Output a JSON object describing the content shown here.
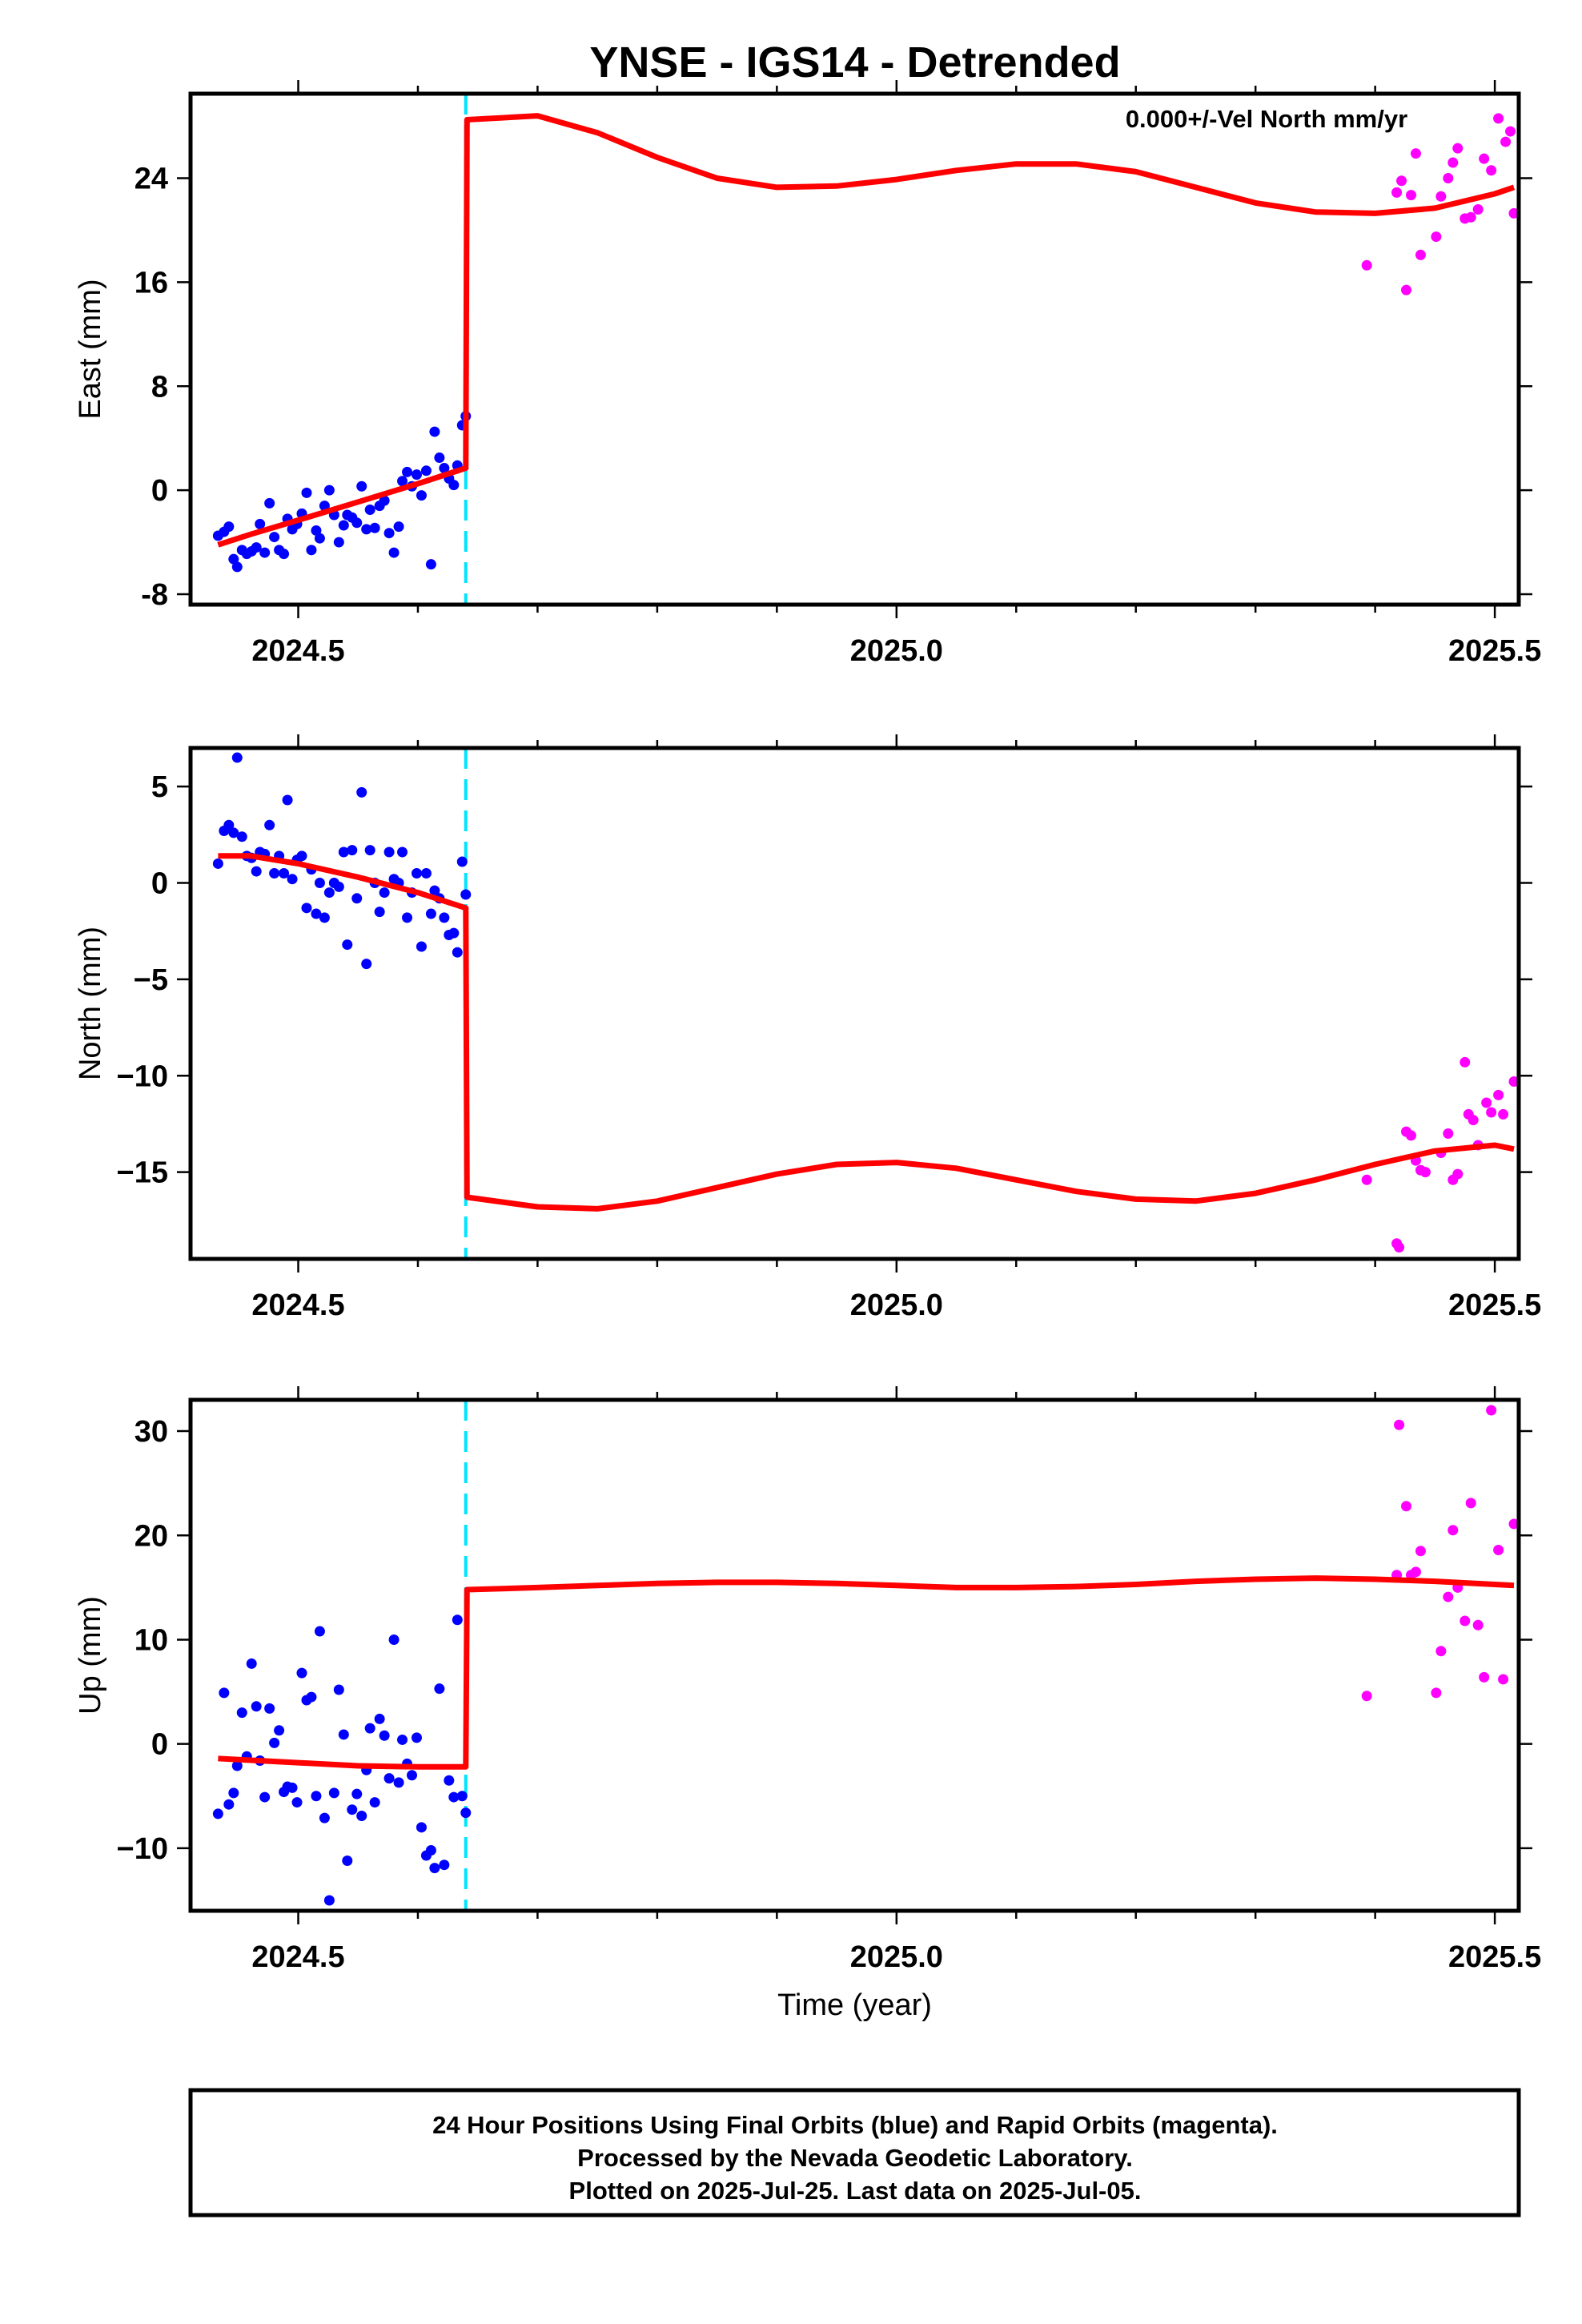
{
  "title": "YNSE - IGS14 - Detrended",
  "footer": {
    "line1": "24 Hour Positions Using Final Orbits (blue) and Rapid Orbits (magenta).",
    "line2": "Processed by the Nevada Geodetic Laboratory.",
    "line3": "Plotted on 2025-Jul-25. Last data on 2025-Jul-05."
  },
  "colors": {
    "final": "#0000ff",
    "rapid": "#ff00ff",
    "model": "#ff0000",
    "event": "#00e5ff"
  },
  "chart_data": [
    {
      "type": "scatter",
      "ylabel": "East (mm)",
      "xlabel": "",
      "annotation": "0.000+/-Vel North mm/yr",
      "xlim": [
        2024.41,
        2025.52
      ],
      "ylim": [
        -8.8,
        30.5
      ],
      "xticks": [
        2024.5,
        2025.0,
        2025.5
      ],
      "xtick_labels": [
        "2024.5",
        "2025.0",
        "2025.5"
      ],
      "yticks": [
        -8,
        0,
        8,
        16,
        24
      ],
      "ytick_labels": [
        "-8",
        "0",
        "8",
        "16",
        "24"
      ],
      "event_line_x": 2024.64,
      "final": [
        [
          2024.433,
          -3.5
        ],
        [
          2024.438,
          -3.2
        ],
        [
          2024.442,
          -2.8
        ],
        [
          2024.446,
          -5.3
        ],
        [
          2024.449,
          -5.9
        ],
        [
          2024.453,
          -4.6
        ],
        [
          2024.457,
          -4.9
        ],
        [
          2024.461,
          -4.7
        ],
        [
          2024.465,
          -4.4
        ],
        [
          2024.468,
          -2.6
        ],
        [
          2024.472,
          -4.8
        ],
        [
          2024.476,
          -1.0
        ],
        [
          2024.48,
          -3.6
        ],
        [
          2024.484,
          -4.6
        ],
        [
          2024.488,
          -4.9
        ],
        [
          2024.491,
          -2.2
        ],
        [
          2024.495,
          -3.0
        ],
        [
          2024.499,
          -2.6
        ],
        [
          2024.503,
          -1.8
        ],
        [
          2024.507,
          -0.2
        ],
        [
          2024.511,
          -4.6
        ],
        [
          2024.515,
          -3.1
        ],
        [
          2024.518,
          -3.7
        ],
        [
          2024.522,
          -1.2
        ],
        [
          2024.526,
          0.0
        ],
        [
          2024.53,
          -1.9
        ],
        [
          2024.534,
          -4.0
        ],
        [
          2024.538,
          -2.7
        ],
        [
          2024.541,
          -1.9
        ],
        [
          2024.545,
          -2.1
        ],
        [
          2024.549,
          -2.5
        ],
        [
          2024.553,
          0.3
        ],
        [
          2024.557,
          -3.0
        ],
        [
          2024.56,
          -1.5
        ],
        [
          2024.564,
          -2.9
        ],
        [
          2024.568,
          -1.2
        ],
        [
          2024.572,
          -0.8
        ],
        [
          2024.576,
          -3.3
        ],
        [
          2024.58,
          -4.8
        ],
        [
          2024.584,
          -2.8
        ],
        [
          2024.587,
          0.7
        ],
        [
          2024.591,
          1.4
        ],
        [
          2024.595,
          0.3
        ],
        [
          2024.599,
          1.2
        ],
        [
          2024.603,
          -0.4
        ],
        [
          2024.607,
          1.5
        ],
        [
          2024.611,
          -5.7
        ],
        [
          2024.614,
          4.5
        ],
        [
          2024.618,
          2.5
        ],
        [
          2024.622,
          1.7
        ],
        [
          2024.626,
          0.9
        ],
        [
          2024.63,
          0.4
        ],
        [
          2024.633,
          1.9
        ],
        [
          2024.637,
          5.0
        ],
        [
          2024.64,
          5.7
        ]
      ],
      "rapid": [
        [
          2025.393,
          17.3
        ],
        [
          2025.418,
          22.9
        ],
        [
          2025.422,
          23.8
        ],
        [
          2025.426,
          15.4
        ],
        [
          2025.43,
          22.7
        ],
        [
          2025.434,
          25.9
        ],
        [
          2025.438,
          18.1
        ],
        [
          2025.451,
          19.5
        ],
        [
          2025.455,
          22.6
        ],
        [
          2025.461,
          24.0
        ],
        [
          2025.465,
          25.2
        ],
        [
          2025.469,
          26.3
        ],
        [
          2025.475,
          20.9
        ],
        [
          2025.48,
          21.0
        ],
        [
          2025.486,
          21.6
        ],
        [
          2025.491,
          25.5
        ],
        [
          2025.497,
          24.6
        ],
        [
          2025.503,
          28.6
        ],
        [
          2025.509,
          26.8
        ],
        [
          2025.513,
          27.6
        ],
        [
          2025.516,
          21.3
        ]
      ],
      "model": [
        [
          2024.433,
          -4.2
        ],
        [
          2024.46,
          -3.4
        ],
        [
          2024.5,
          -2.3
        ],
        [
          2024.55,
          -0.9
        ],
        [
          2024.6,
          0.5
        ],
        [
          2024.64,
          1.7
        ],
        [
          2024.641,
          28.5
        ],
        [
          2024.7,
          28.8
        ],
        [
          2024.75,
          27.5
        ],
        [
          2024.8,
          25.6
        ],
        [
          2024.85,
          24.0
        ],
        [
          2024.9,
          23.3
        ],
        [
          2024.95,
          23.4
        ],
        [
          2025.0,
          23.9
        ],
        [
          2025.05,
          24.6
        ],
        [
          2025.1,
          25.1
        ],
        [
          2025.15,
          25.1
        ],
        [
          2025.2,
          24.5
        ],
        [
          2025.25,
          23.3
        ],
        [
          2025.3,
          22.1
        ],
        [
          2025.35,
          21.4
        ],
        [
          2025.4,
          21.3
        ],
        [
          2025.45,
          21.7
        ],
        [
          2025.5,
          22.8
        ],
        [
          2025.516,
          23.3
        ]
      ]
    },
    {
      "type": "scatter",
      "ylabel": "North (mm)",
      "xlabel": "",
      "xlim": [
        2024.41,
        2025.52
      ],
      "ylim": [
        -19.5,
        7.0
      ],
      "xticks": [
        2024.5,
        2025.0,
        2025.5
      ],
      "xtick_labels": [
        "2024.5",
        "2025.0",
        "2025.5"
      ],
      "yticks": [
        -15,
        -10,
        -5,
        0,
        5
      ],
      "ytick_labels": [
        "−15",
        "−10",
        "−5",
        "0",
        "5"
      ],
      "event_line_x": 2024.64,
      "final": [
        [
          2024.433,
          1.0
        ],
        [
          2024.438,
          2.7
        ],
        [
          2024.442,
          3.0
        ],
        [
          2024.446,
          2.6
        ],
        [
          2024.449,
          6.5
        ],
        [
          2024.453,
          2.4
        ],
        [
          2024.457,
          1.4
        ],
        [
          2024.461,
          1.3
        ],
        [
          2024.465,
          0.6
        ],
        [
          2024.468,
          1.6
        ],
        [
          2024.472,
          1.5
        ],
        [
          2024.476,
          3.0
        ],
        [
          2024.48,
          0.5
        ],
        [
          2024.484,
          1.4
        ],
        [
          2024.488,
          0.5
        ],
        [
          2024.491,
          4.3
        ],
        [
          2024.495,
          0.2
        ],
        [
          2024.499,
          1.2
        ],
        [
          2024.503,
          1.4
        ],
        [
          2024.507,
          -1.3
        ],
        [
          2024.511,
          0.7
        ],
        [
          2024.515,
          -1.6
        ],
        [
          2024.518,
          0.0
        ],
        [
          2024.522,
          -1.8
        ],
        [
          2024.526,
          -0.5
        ],
        [
          2024.53,
          0.0
        ],
        [
          2024.534,
          -0.2
        ],
        [
          2024.538,
          1.6
        ],
        [
          2024.541,
          -3.2
        ],
        [
          2024.545,
          1.7
        ],
        [
          2024.549,
          -0.8
        ],
        [
          2024.553,
          4.7
        ],
        [
          2024.557,
          -4.2
        ],
        [
          2024.56,
          1.7
        ],
        [
          2024.564,
          0.0
        ],
        [
          2024.568,
          -1.5
        ],
        [
          2024.572,
          -0.5
        ],
        [
          2024.576,
          1.6
        ],
        [
          2024.58,
          0.2
        ],
        [
          2024.584,
          0.0
        ],
        [
          2024.587,
          1.6
        ],
        [
          2024.591,
          -1.8
        ],
        [
          2024.595,
          -0.5
        ],
        [
          2024.599,
          0.5
        ],
        [
          2024.603,
          -3.3
        ],
        [
          2024.607,
          0.5
        ],
        [
          2024.611,
          -1.6
        ],
        [
          2024.614,
          -0.4
        ],
        [
          2024.618,
          -0.8
        ],
        [
          2024.622,
          -1.8
        ],
        [
          2024.626,
          -2.7
        ],
        [
          2024.63,
          -2.6
        ],
        [
          2024.633,
          -3.6
        ],
        [
          2024.637,
          1.1
        ],
        [
          2024.64,
          -0.6
        ]
      ],
      "rapid": [
        [
          2025.393,
          -15.4
        ],
        [
          2025.418,
          -18.7
        ],
        [
          2025.42,
          -18.9
        ],
        [
          2025.426,
          -12.9
        ],
        [
          2025.43,
          -13.1
        ],
        [
          2025.434,
          -14.4
        ],
        [
          2025.438,
          -14.9
        ],
        [
          2025.442,
          -15.0
        ],
        [
          2025.455,
          -14.0
        ],
        [
          2025.461,
          -13.0
        ],
        [
          2025.465,
          -15.4
        ],
        [
          2025.469,
          -15.1
        ],
        [
          2025.475,
          -9.3
        ],
        [
          2025.478,
          -12.0
        ],
        [
          2025.482,
          -12.3
        ],
        [
          2025.486,
          -13.6
        ],
        [
          2025.493,
          -11.4
        ],
        [
          2025.497,
          -11.9
        ],
        [
          2025.503,
          -11.0
        ],
        [
          2025.507,
          -12.0
        ],
        [
          2025.516,
          -10.3
        ]
      ],
      "model": [
        [
          2024.433,
          1.4
        ],
        [
          2024.46,
          1.4
        ],
        [
          2024.5,
          1.0
        ],
        [
          2024.55,
          0.3
        ],
        [
          2024.6,
          -0.5
        ],
        [
          2024.64,
          -1.3
        ],
        [
          2024.641,
          -16.3
        ],
        [
          2024.7,
          -16.8
        ],
        [
          2024.75,
          -16.9
        ],
        [
          2024.8,
          -16.5
        ],
        [
          2024.85,
          -15.8
        ],
        [
          2024.9,
          -15.1
        ],
        [
          2024.95,
          -14.6
        ],
        [
          2025.0,
          -14.5
        ],
        [
          2025.05,
          -14.8
        ],
        [
          2025.1,
          -15.4
        ],
        [
          2025.15,
          -16.0
        ],
        [
          2025.2,
          -16.4
        ],
        [
          2025.25,
          -16.5
        ],
        [
          2025.3,
          -16.1
        ],
        [
          2025.35,
          -15.4
        ],
        [
          2025.4,
          -14.6
        ],
        [
          2025.45,
          -13.9
        ],
        [
          2025.5,
          -13.6
        ],
        [
          2025.516,
          -13.8
        ]
      ]
    },
    {
      "type": "scatter",
      "ylabel": "Up (mm)",
      "xlabel": "Time (year)",
      "xlim": [
        2024.41,
        2025.52
      ],
      "ylim": [
        -16,
        33
      ],
      "xticks": [
        2024.5,
        2025.0,
        2025.5
      ],
      "xtick_labels": [
        "2024.5",
        "2025.0",
        "2025.5"
      ],
      "yticks": [
        -10,
        0,
        10,
        20,
        30
      ],
      "ytick_labels": [
        "−10",
        "0",
        "10",
        "20",
        "30"
      ],
      "event_line_x": 2024.64,
      "final": [
        [
          2024.433,
          -6.7
        ],
        [
          2024.438,
          4.9
        ],
        [
          2024.442,
          -5.8
        ],
        [
          2024.446,
          -4.7
        ],
        [
          2024.449,
          -2.1
        ],
        [
          2024.453,
          3.0
        ],
        [
          2024.457,
          -1.2
        ],
        [
          2024.461,
          7.7
        ],
        [
          2024.465,
          3.6
        ],
        [
          2024.468,
          -1.6
        ],
        [
          2024.472,
          -5.1
        ],
        [
          2024.476,
          3.4
        ],
        [
          2024.48,
          0.1
        ],
        [
          2024.484,
          1.3
        ],
        [
          2024.488,
          -4.6
        ],
        [
          2024.491,
          -4.1
        ],
        [
          2024.495,
          -4.2
        ],
        [
          2024.499,
          -5.6
        ],
        [
          2024.503,
          6.8
        ],
        [
          2024.507,
          4.2
        ],
        [
          2024.511,
          4.5
        ],
        [
          2024.515,
          -5.0
        ],
        [
          2024.518,
          10.8
        ],
        [
          2024.522,
          -7.1
        ],
        [
          2024.526,
          -15.0
        ],
        [
          2024.53,
          -4.7
        ],
        [
          2024.534,
          5.2
        ],
        [
          2024.538,
          0.9
        ],
        [
          2024.541,
          -11.2
        ],
        [
          2024.545,
          -6.3
        ],
        [
          2024.549,
          -4.8
        ],
        [
          2024.553,
          -6.9
        ],
        [
          2024.557,
          -2.5
        ],
        [
          2024.56,
          1.5
        ],
        [
          2024.564,
          -5.6
        ],
        [
          2024.568,
          2.4
        ],
        [
          2024.572,
          0.8
        ],
        [
          2024.576,
          -3.3
        ],
        [
          2024.58,
          10.0
        ],
        [
          2024.584,
          -3.7
        ],
        [
          2024.587,
          0.4
        ],
        [
          2024.591,
          -1.9
        ],
        [
          2024.595,
          -3.0
        ],
        [
          2024.599,
          0.6
        ],
        [
          2024.603,
          -8.0
        ],
        [
          2024.607,
          -10.7
        ],
        [
          2024.611,
          -10.2
        ],
        [
          2024.614,
          -11.9
        ],
        [
          2024.618,
          5.3
        ],
        [
          2024.622,
          -11.6
        ],
        [
          2024.626,
          -3.5
        ],
        [
          2024.63,
          -5.1
        ],
        [
          2024.633,
          11.9
        ],
        [
          2024.637,
          -5.0
        ],
        [
          2024.64,
          -6.6
        ]
      ],
      "rapid": [
        [
          2025.393,
          4.6
        ],
        [
          2025.418,
          16.2
        ],
        [
          2025.42,
          30.6
        ],
        [
          2025.426,
          22.8
        ],
        [
          2025.43,
          16.2
        ],
        [
          2025.434,
          16.5
        ],
        [
          2025.438,
          18.5
        ],
        [
          2025.451,
          4.9
        ],
        [
          2025.455,
          8.9
        ],
        [
          2025.461,
          14.1
        ],
        [
          2025.465,
          20.5
        ],
        [
          2025.469,
          15.0
        ],
        [
          2025.475,
          11.8
        ],
        [
          2025.48,
          23.1
        ],
        [
          2025.486,
          11.4
        ],
        [
          2025.491,
          6.4
        ],
        [
          2025.497,
          32.0
        ],
        [
          2025.503,
          18.6
        ],
        [
          2025.507,
          6.2
        ],
        [
          2025.516,
          21.1
        ]
      ],
      "model": [
        [
          2024.433,
          -1.4
        ],
        [
          2024.5,
          -1.8
        ],
        [
          2024.55,
          -2.1
        ],
        [
          2024.6,
          -2.2
        ],
        [
          2024.64,
          -2.2
        ],
        [
          2024.641,
          14.8
        ],
        [
          2024.7,
          15.0
        ],
        [
          2024.75,
          15.2
        ],
        [
          2024.8,
          15.4
        ],
        [
          2024.85,
          15.5
        ],
        [
          2024.9,
          15.5
        ],
        [
          2024.95,
          15.4
        ],
        [
          2025.0,
          15.2
        ],
        [
          2025.05,
          15.0
        ],
        [
          2025.1,
          15.0
        ],
        [
          2025.15,
          15.1
        ],
        [
          2025.2,
          15.3
        ],
        [
          2025.25,
          15.6
        ],
        [
          2025.3,
          15.8
        ],
        [
          2025.35,
          15.9
        ],
        [
          2025.4,
          15.8
        ],
        [
          2025.45,
          15.6
        ],
        [
          2025.5,
          15.3
        ],
        [
          2025.516,
          15.2
        ]
      ]
    }
  ]
}
